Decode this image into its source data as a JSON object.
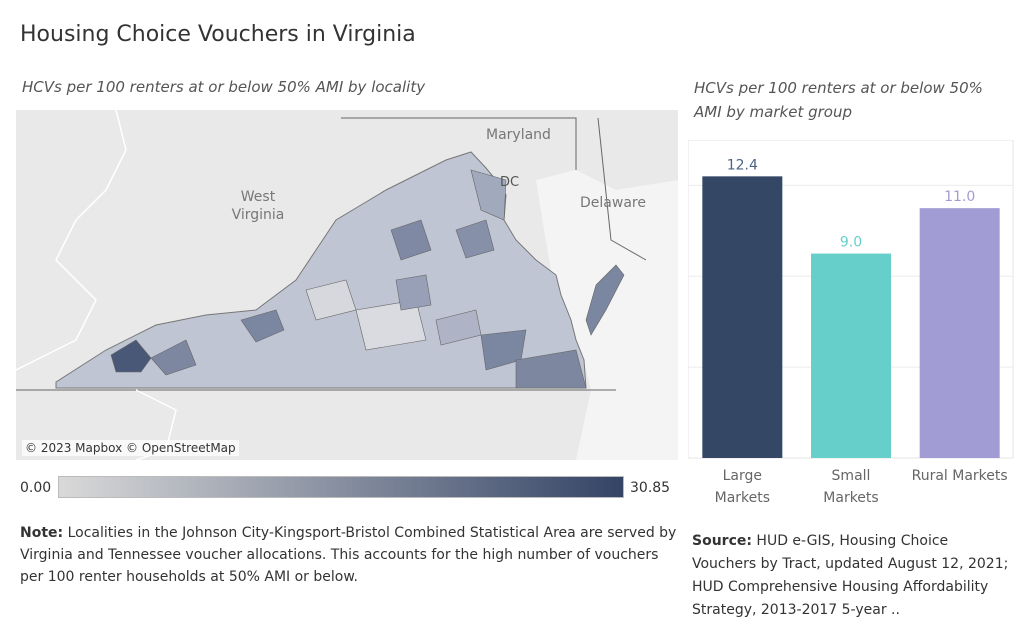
{
  "title": "Housing Choice Vouchers in Virginia",
  "map": {
    "subtitle": "HCVs per 100 renters at or below 50% AMI by locality",
    "attribution": "© 2023 Mapbox © OpenStreetMap",
    "labels": {
      "maryland": "Maryland",
      "dc": "DC",
      "delaware": "Delaware",
      "west_virginia_1": "West",
      "west_virginia_2": "Virginia"
    },
    "legend": {
      "min": "0.00",
      "max": "30.85",
      "color_low": "#d9d9d9",
      "color_high": "#344466"
    }
  },
  "chart_data": {
    "type": "bar",
    "title": "HCVs per 100 renters at or below 50% AMI by market group",
    "categories": [
      "Large Markets",
      "Small Markets",
      "Rural Markets"
    ],
    "category_lines": [
      [
        "Large",
        "Markets"
      ],
      [
        "Small",
        "Markets"
      ],
      [
        "Rural Markets"
      ]
    ],
    "values": [
      12.4,
      9.0,
      11.0
    ],
    "value_labels": [
      "12.4",
      "9.0",
      "11.0"
    ],
    "colors": [
      "#344866",
      "#67cfca",
      "#a29cd4"
    ],
    "label_colors": [
      "#4d6484",
      "#67cfca",
      "#a29cd4"
    ],
    "ylim": [
      0,
      14
    ],
    "grid": true
  },
  "note": {
    "label": "Note:",
    "text": " Localities in the Johnson City-Kingsport-Bristol Combined Statistical Area are served by Virginia and Tennessee voucher allocations. This accounts for the high number of vouchers per 100 renter households at 50% AMI or below."
  },
  "source": {
    "label": "Source:",
    "text": " HUD e-GIS, Housing Choice Vouchers by Tract, updated August 12, 2021; HUD Comprehensive Housing Affordability Strategy, 2013-2017 5-year .."
  }
}
